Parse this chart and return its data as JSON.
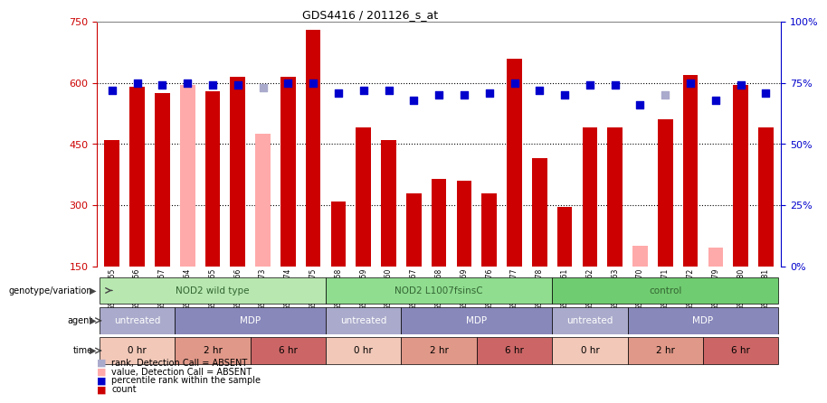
{
  "title": "GDS4416 / 201126_s_at",
  "samples": [
    "GSM560855",
    "GSM560856",
    "GSM560857",
    "GSM560864",
    "GSM560865",
    "GSM560866",
    "GSM560873",
    "GSM560874",
    "GSM560875",
    "GSM560858",
    "GSM560859",
    "GSM560860",
    "GSM560867",
    "GSM560868",
    "GSM560869",
    "GSM560876",
    "GSM560877",
    "GSM560878",
    "GSM560861",
    "GSM560862",
    "GSM560863",
    "GSM560870",
    "GSM560871",
    "GSM560872",
    "GSM560879",
    "GSM560880",
    "GSM560881"
  ],
  "bar_values": [
    460,
    590,
    575,
    595,
    580,
    615,
    475,
    615,
    730,
    310,
    490,
    460,
    330,
    365,
    360,
    330,
    660,
    415,
    295,
    490,
    490,
    200,
    510,
    620,
    195,
    595,
    490
  ],
  "bar_absent": [
    false,
    false,
    false,
    true,
    false,
    false,
    true,
    false,
    false,
    false,
    false,
    false,
    false,
    false,
    false,
    false,
    false,
    false,
    false,
    false,
    false,
    true,
    false,
    false,
    true,
    false,
    false
  ],
  "percentile_values": [
    72,
    75,
    74,
    75,
    74,
    74,
    73,
    75,
    75,
    71,
    72,
    72,
    68,
    70,
    70,
    71,
    75,
    72,
    70,
    74,
    74,
    66,
    70,
    75,
    68,
    74,
    71
  ],
  "percentile_absent": [
    false,
    false,
    false,
    false,
    false,
    false,
    true,
    false,
    false,
    false,
    false,
    false,
    false,
    false,
    false,
    false,
    false,
    false,
    false,
    false,
    false,
    false,
    true,
    false,
    false,
    false,
    false
  ],
  "groups": [
    {
      "label": "NOD2 wild type",
      "start": 0,
      "end": 9
    },
    {
      "label": "NOD2 L1007fsinsC",
      "start": 9,
      "end": 18
    },
    {
      "label": "control",
      "start": 18,
      "end": 27
    }
  ],
  "geno_colors": [
    "#b8e8b0",
    "#90dd90",
    "#70cc70"
  ],
  "agent_groups": [
    {
      "label": "untreated",
      "start": 0,
      "end": 3
    },
    {
      "label": "MDP",
      "start": 3,
      "end": 9
    },
    {
      "label": "untreated",
      "start": 9,
      "end": 12
    },
    {
      "label": "MDP",
      "start": 12,
      "end": 18
    },
    {
      "label": "untreated",
      "start": 18,
      "end": 21
    },
    {
      "label": "MDP",
      "start": 21,
      "end": 27
    }
  ],
  "agent_colors": {
    "untreated": "#aaaacc",
    "MDP": "#8888bb"
  },
  "time_groups": [
    {
      "label": "0 hr",
      "start": 0,
      "end": 3
    },
    {
      "label": "2 hr",
      "start": 3,
      "end": 6
    },
    {
      "label": "6 hr",
      "start": 6,
      "end": 9
    },
    {
      "label": "0 hr",
      "start": 9,
      "end": 12
    },
    {
      "label": "2 hr",
      "start": 12,
      "end": 15
    },
    {
      "label": "6 hr",
      "start": 15,
      "end": 18
    },
    {
      "label": "0 hr",
      "start": 18,
      "end": 21
    },
    {
      "label": "2 hr",
      "start": 21,
      "end": 24
    },
    {
      "label": "6 hr",
      "start": 24,
      "end": 27
    }
  ],
  "time_colors": {
    "0 hr": "#f2c8b8",
    "2 hr": "#e09888",
    "6 hr": "#cc6666"
  },
  "ylim": [
    150,
    750
  ],
  "yticks": [
    150,
    300,
    450,
    600,
    750
  ],
  "bar_color": "#cc0000",
  "bar_absent_color": "#ffaaaa",
  "dot_color": "#0000cc",
  "dot_absent_color": "#aaaacc"
}
